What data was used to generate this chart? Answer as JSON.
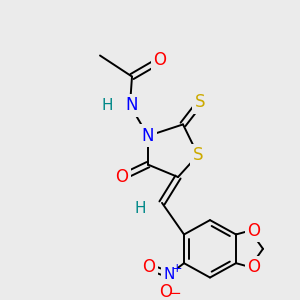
{
  "bg_color": "#ebebeb",
  "bond_color": "#000000",
  "atom_colors": {
    "O": "#ff0000",
    "N": "#0000ff",
    "S": "#ccaa00",
    "H": "#008888",
    "C": "#000000",
    "Np": "#0000ff"
  },
  "figsize": [
    3.0,
    3.0
  ],
  "dpi": 100
}
